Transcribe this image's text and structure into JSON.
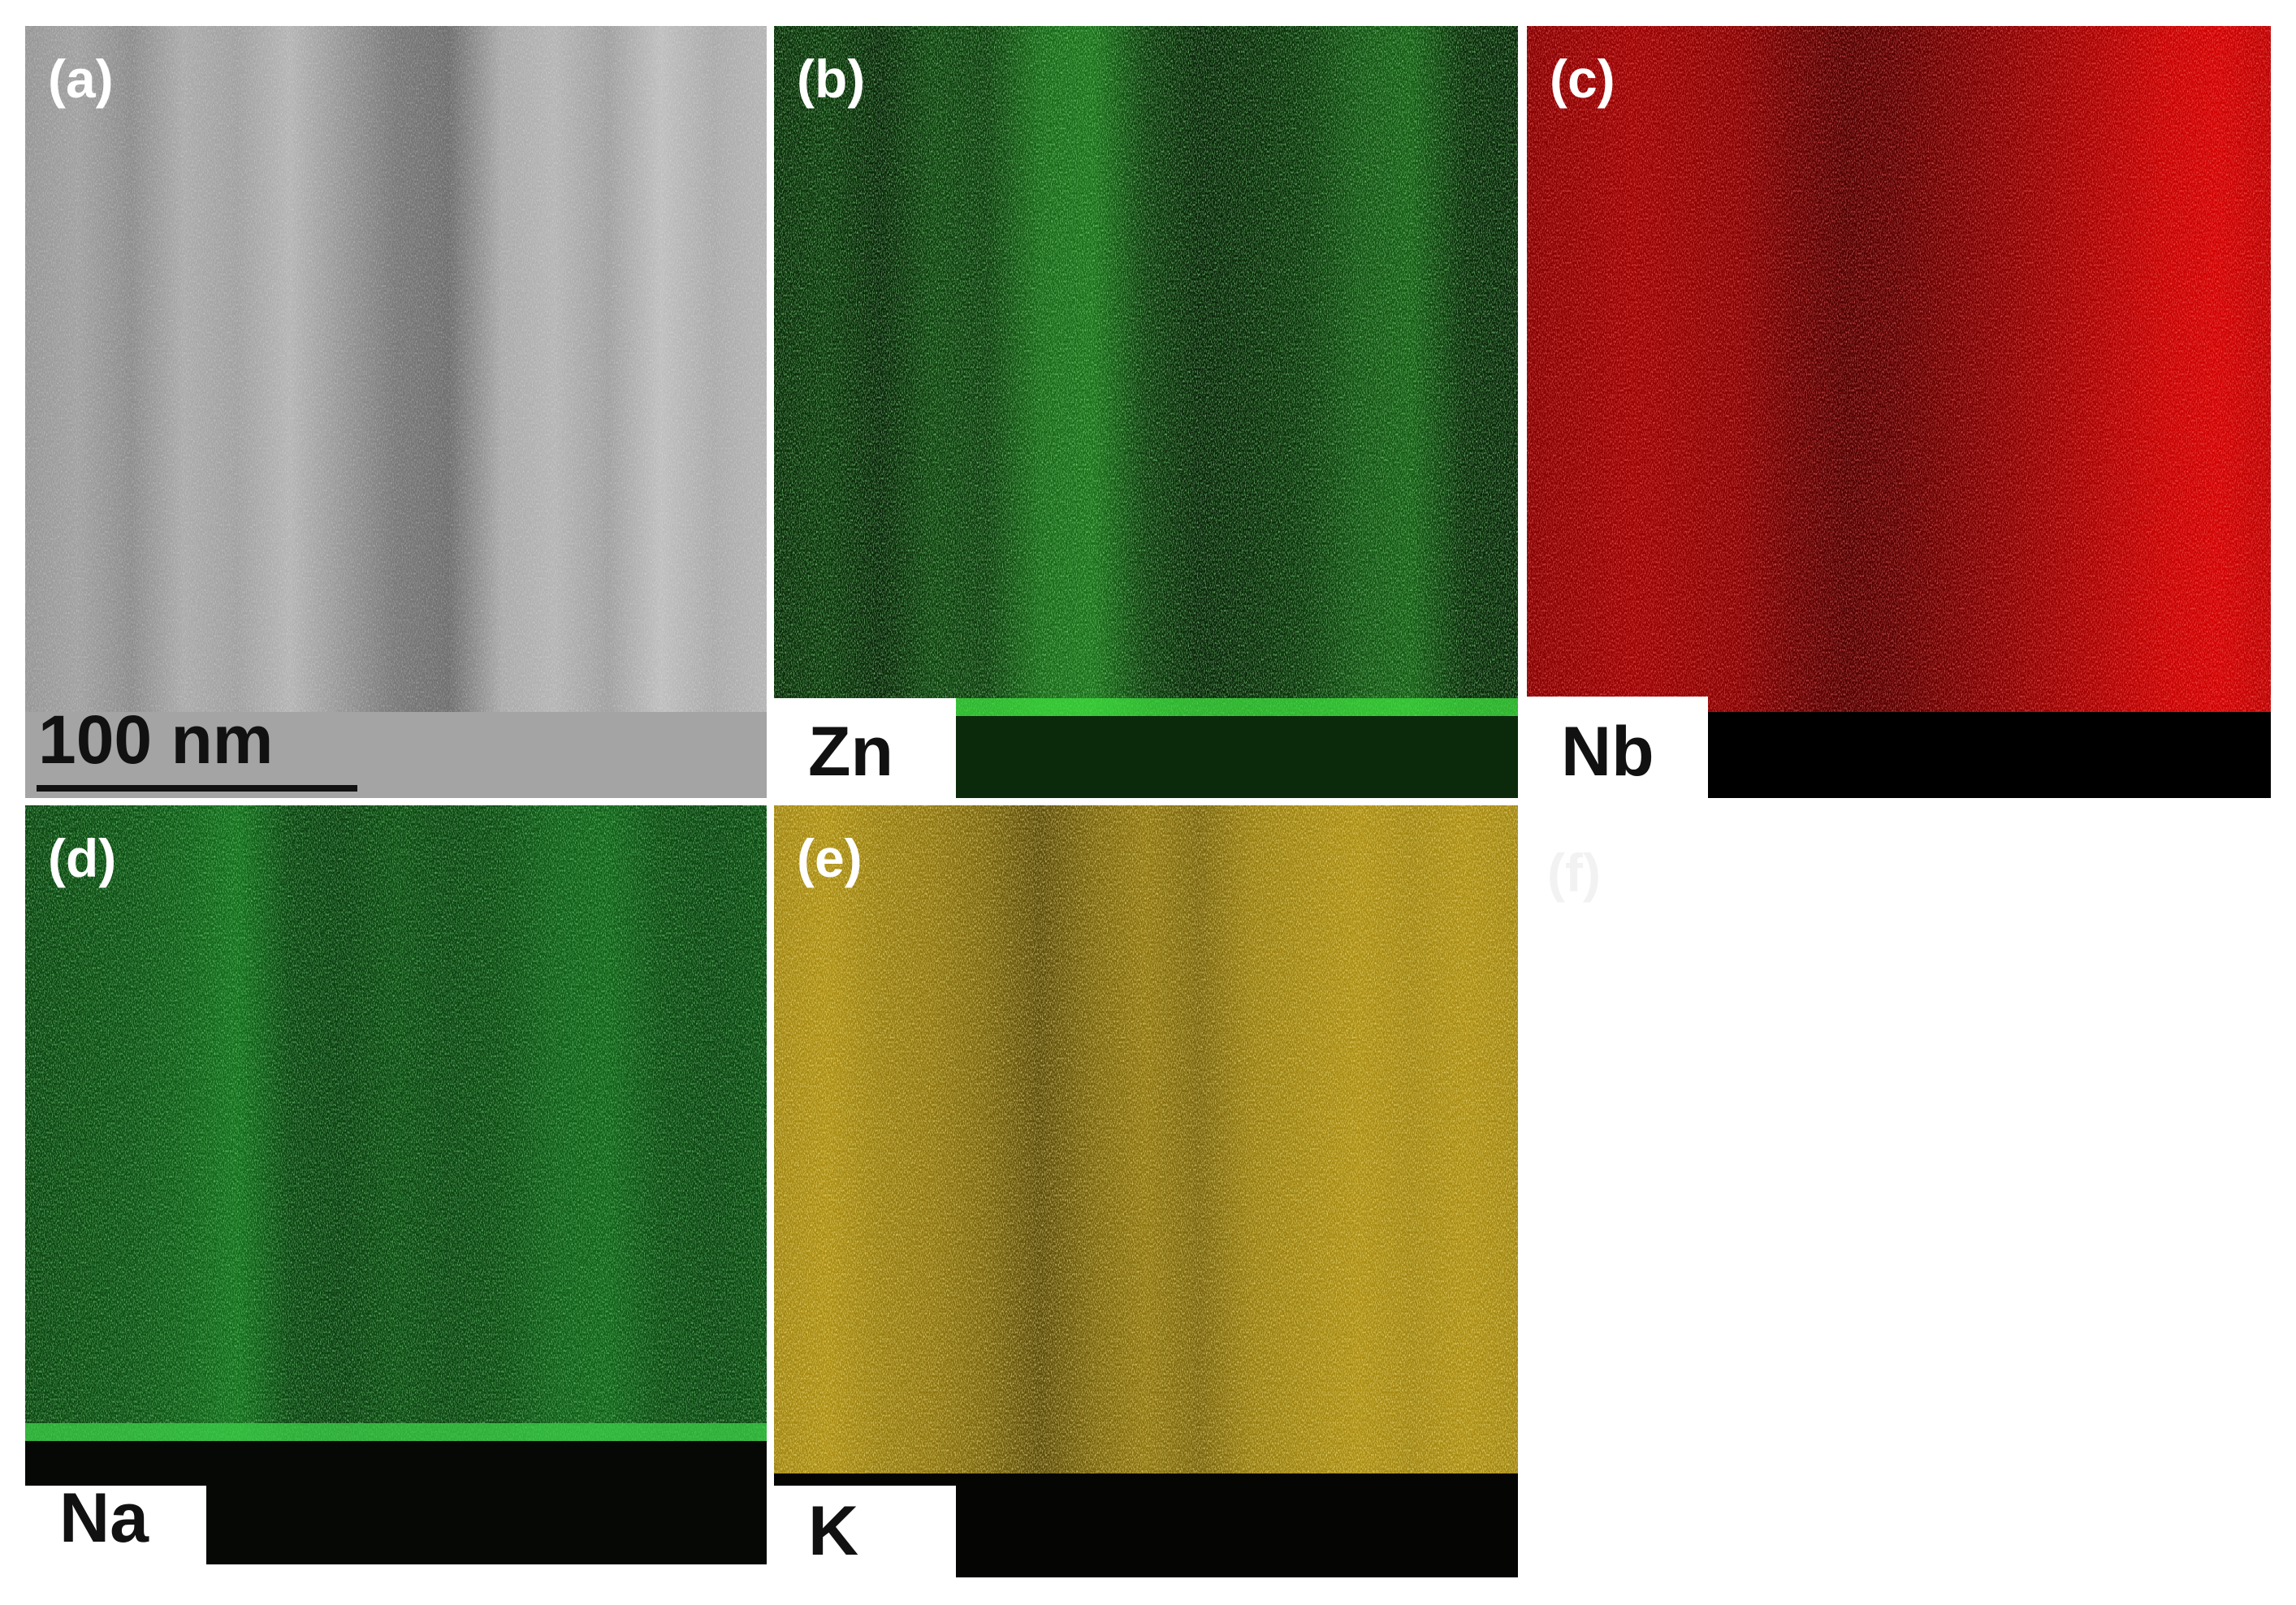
{
  "panels": [
    {
      "label": "(a)",
      "scale_bar": "100 nm"
    },
    {
      "label": "(b)",
      "element": "Zn"
    },
    {
      "label": "(c)",
      "element": "Nb"
    },
    {
      "label": "(d)",
      "element": "Na"
    },
    {
      "label": "(e)",
      "element": "K"
    },
    {
      "label": "(f)"
    }
  ]
}
